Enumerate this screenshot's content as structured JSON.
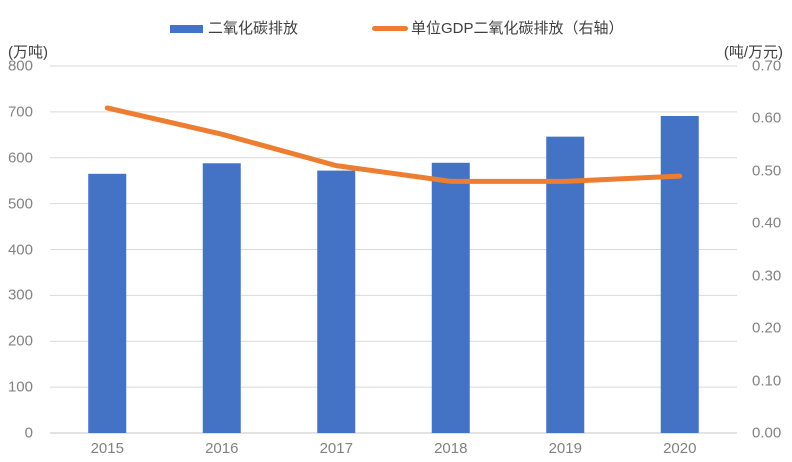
{
  "chart_data": {
    "type": "combo",
    "categories": [
      "2015",
      "2016",
      "2017",
      "2018",
      "2019",
      "2020"
    ],
    "series": [
      {
        "name": "二氧化碳排放",
        "type": "bar",
        "axis": "left",
        "color": "#4472C4",
        "values": [
          565,
          588,
          572,
          589,
          646,
          691
        ]
      },
      {
        "name": "单位GDP二氧化碳排放（右轴）",
        "type": "line",
        "axis": "right",
        "color": "#ED7D31",
        "values": [
          0.62,
          0.57,
          0.51,
          0.48,
          0.48,
          0.49
        ]
      }
    ],
    "left_axis": {
      "label": "(万吨)",
      "min": 0,
      "max": 800,
      "step": 100,
      "decimals": 0
    },
    "right_axis": {
      "label": "(吨/万元)",
      "min": 0,
      "max": 0.7,
      "step": 0.1,
      "decimals": 2
    },
    "grid": "horizontal",
    "legend_position": "top",
    "colors": {
      "gridline": "#D9D9D9",
      "axis_line": "#C6C6C6",
      "tick_text": "#828282",
      "label_text": "#3f3f3f",
      "background": "#ffffff"
    }
  }
}
